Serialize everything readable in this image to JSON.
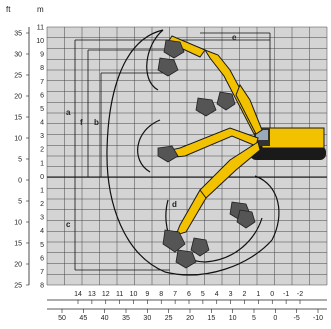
{
  "units": {
    "feet": "ft",
    "meters": "m"
  },
  "left_ft_ticks": [
    "35",
    "30",
    "25",
    "20",
    "15",
    "10",
    "5",
    "0",
    "5",
    "10",
    "15",
    "20",
    "25"
  ],
  "left_m_ticks": [
    "11",
    "10",
    "9",
    "8",
    "7",
    "6",
    "5",
    "4",
    "3",
    "2",
    "1",
    "0",
    "1",
    "2",
    "3",
    "4",
    "5",
    "6",
    "7",
    "8"
  ],
  "bottom_m_ticks": [
    "14",
    "13",
    "12",
    "11",
    "10",
    "9",
    "8",
    "7",
    "6",
    "5",
    "4",
    "3",
    "2",
    "1",
    "0",
    "-1",
    "-2"
  ],
  "bottom_ft_ticks": [
    "50",
    "45",
    "40",
    "35",
    "30",
    "25",
    "20",
    "15",
    "10",
    "5",
    "0",
    "-5",
    "-10"
  ],
  "dimension_labels": {
    "a": "a",
    "b": "b",
    "c": "c",
    "d": "d",
    "e": "e",
    "f": "f"
  },
  "colors": {
    "grid_bg": "#d4d4d4",
    "grid_line": "#444444",
    "machine": "#f2c200",
    "machine_dark": "#1a1a1a",
    "bucket": "#555555",
    "envelope": "#111111"
  }
}
